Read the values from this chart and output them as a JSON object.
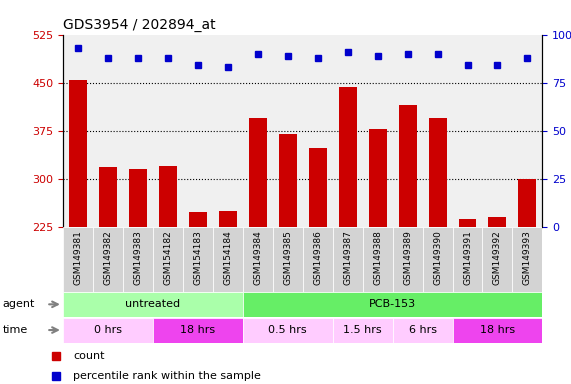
{
  "title": "GDS3954 / 202894_at",
  "samples": [
    "GSM149381",
    "GSM149382",
    "GSM149383",
    "GSM154182",
    "GSM154183",
    "GSM154184",
    "GSM149384",
    "GSM149385",
    "GSM149386",
    "GSM149387",
    "GSM149388",
    "GSM149389",
    "GSM149390",
    "GSM149391",
    "GSM149392",
    "GSM149393"
  ],
  "counts": [
    454,
    318,
    315,
    320,
    248,
    250,
    395,
    370,
    348,
    443,
    378,
    415,
    395,
    237,
    240,
    300
  ],
  "percentiles": [
    93,
    88,
    88,
    88,
    84,
    83,
    90,
    89,
    88,
    91,
    89,
    90,
    90,
    84,
    84,
    88
  ],
  "bar_color": "#cc0000",
  "dot_color": "#0000cc",
  "ylim_left": [
    225,
    525
  ],
  "ylim_right": [
    0,
    100
  ],
  "yticks_left": [
    225,
    300,
    375,
    450,
    525
  ],
  "yticks_right": [
    0,
    25,
    50,
    75,
    100
  ],
  "agent_groups": [
    {
      "label": "untreated",
      "start": 0,
      "end": 6,
      "color": "#aaffaa"
    },
    {
      "label": "PCB-153",
      "start": 6,
      "end": 16,
      "color": "#66ee66"
    }
  ],
  "time_groups": [
    {
      "label": "0 hrs",
      "start": 0,
      "end": 3,
      "color": "#ffccff"
    },
    {
      "label": "18 hrs",
      "start": 3,
      "end": 6,
      "color": "#ee44ee"
    },
    {
      "label": "0.5 hrs",
      "start": 6,
      "end": 9,
      "color": "#ffccff"
    },
    {
      "label": "1.5 hrs",
      "start": 9,
      "end": 11,
      "color": "#ffccff"
    },
    {
      "label": "6 hrs",
      "start": 11,
      "end": 13,
      "color": "#ffccff"
    },
    {
      "label": "18 hrs",
      "start": 13,
      "end": 16,
      "color": "#ee44ee"
    }
  ],
  "background_color": "#ffffff",
  "tick_color_left": "#cc0000",
  "tick_color_right": "#0000cc"
}
